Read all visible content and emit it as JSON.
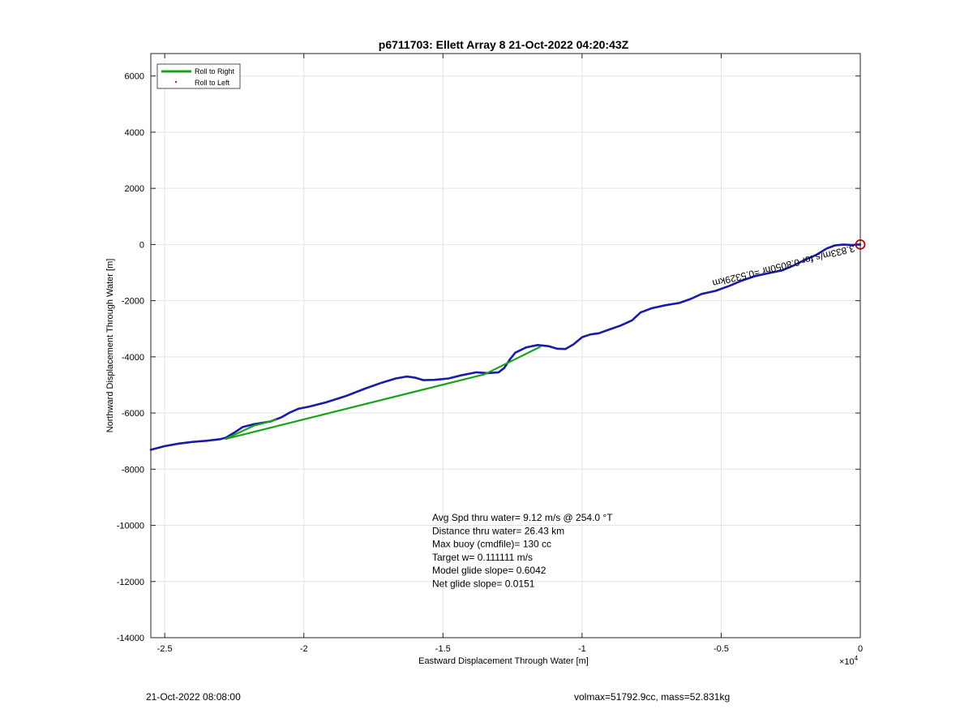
{
  "chart_data": {
    "type": "line",
    "title": "p6711703: Ellett Array 8 21-Oct-2022 04:20:43Z",
    "xlabel": "Eastward Displacement Through Water [m]",
    "ylabel": "Northward Displacement Through Water [m]",
    "x_exponent_label": "×10",
    "x_exponent_power": "4",
    "xlim": [
      -2.55,
      0
    ],
    "ylim": [
      -14000,
      6800
    ],
    "x_ticks": [
      -2.5,
      -2,
      -1.5,
      -1,
      -0.5,
      0
    ],
    "x_tick_labels": [
      "-2.5",
      "-2",
      "-1.5",
      "-1",
      "-0.5",
      "0"
    ],
    "y_ticks": [
      6000,
      4000,
      2000,
      0,
      -2000,
      -4000,
      -6000,
      -8000,
      -10000,
      -12000,
      -14000
    ],
    "y_tick_labels": [
      "6000",
      "4000",
      "2000",
      "0",
      "-2000",
      "-4000",
      "-6000",
      "-8000",
      "-10000",
      "-12000",
      "-14000"
    ],
    "grid": true,
    "legend_position": "top-left",
    "series": [
      {
        "name": "Roll to Right",
        "color": "#1aa31a",
        "segments": [
          [
            [
              -2.28,
              -6920
            ],
            [
              -2.18,
              -6450
            ],
            [
              -2.1,
              -6240
            ]
          ],
          [
            [
              -2.28,
              -6920
            ],
            [
              -1.35,
              -4620
            ],
            [
              -1.15,
              -3640
            ]
          ]
        ]
      },
      {
        "name": "Roll to Left",
        "color": "#ff0000",
        "segments": []
      },
      {
        "name": "",
        "color": "#1a1aaa",
        "segments": [
          [
            [
              -2.55,
              -7310
            ],
            [
              -2.5,
              -7180
            ],
            [
              -2.45,
              -7090
            ],
            [
              -2.4,
              -7030
            ],
            [
              -2.35,
              -6990
            ],
            [
              -2.3,
              -6930
            ],
            [
              -2.28,
              -6880
            ],
            [
              -2.25,
              -6700
            ],
            [
              -2.22,
              -6500
            ],
            [
              -2.18,
              -6400
            ],
            [
              -2.12,
              -6300
            ],
            [
              -2.08,
              -6150
            ],
            [
              -2.05,
              -5980
            ],
            [
              -2.02,
              -5850
            ],
            [
              -1.98,
              -5770
            ],
            [
              -1.92,
              -5620
            ],
            [
              -1.85,
              -5400
            ],
            [
              -1.78,
              -5130
            ],
            [
              -1.72,
              -4920
            ],
            [
              -1.67,
              -4770
            ],
            [
              -1.63,
              -4700
            ],
            [
              -1.6,
              -4740
            ],
            [
              -1.57,
              -4830
            ],
            [
              -1.53,
              -4820
            ],
            [
              -1.48,
              -4770
            ],
            [
              -1.43,
              -4650
            ],
            [
              -1.38,
              -4550
            ],
            [
              -1.34,
              -4580
            ],
            [
              -1.3,
              -4550
            ],
            [
              -1.28,
              -4400
            ],
            [
              -1.26,
              -4100
            ],
            [
              -1.24,
              -3850
            ],
            [
              -1.2,
              -3660
            ],
            [
              -1.16,
              -3580
            ],
            [
              -1.12,
              -3620
            ],
            [
              -1.09,
              -3710
            ],
            [
              -1.06,
              -3720
            ],
            [
              -1.03,
              -3550
            ],
            [
              -1.0,
              -3300
            ],
            [
              -0.97,
              -3200
            ],
            [
              -0.94,
              -3160
            ],
            [
              -0.9,
              -3020
            ],
            [
              -0.86,
              -2880
            ],
            [
              -0.82,
              -2700
            ],
            [
              -0.79,
              -2420
            ],
            [
              -0.75,
              -2270
            ],
            [
              -0.7,
              -2160
            ],
            [
              -0.65,
              -2080
            ],
            [
              -0.61,
              -1940
            ],
            [
              -0.57,
              -1760
            ],
            [
              -0.52,
              -1650
            ],
            [
              -0.47,
              -1470
            ],
            [
              -0.43,
              -1300
            ],
            [
              -0.38,
              -1130
            ],
            [
              -0.33,
              -1020
            ],
            [
              -0.28,
              -920
            ],
            [
              -0.24,
              -750
            ],
            [
              -0.2,
              -550
            ],
            [
              -0.16,
              -380
            ],
            [
              -0.12,
              -140
            ],
            [
              -0.09,
              -30
            ],
            [
              -0.06,
              0
            ],
            [
              -0.03,
              -20
            ],
            [
              -0.01,
              0
            ],
            [
              0.0,
              0
            ]
          ]
        ]
      }
    ],
    "end_marker": {
      "x": 0,
      "y": 0,
      "color": "#cc0000"
    },
    "annotations": {
      "rotated_label": "3.833m/s for 0.8050hr =0.5329km",
      "stats": [
        "Avg Spd thru water=  9.12 m/s @ 254.0 °T",
        "Distance thru water= 26.43 km",
        "Max buoy (cmdfile)= 130 cc",
        "Target w= 0.111111 m/s",
        "Model glide slope= 0.6042",
        "Net glide slope= 0.0151"
      ]
    }
  },
  "footer": {
    "left": "21-Oct-2022 08:08:00",
    "right": "volmax=51792.9cc, mass=52.831kg"
  }
}
